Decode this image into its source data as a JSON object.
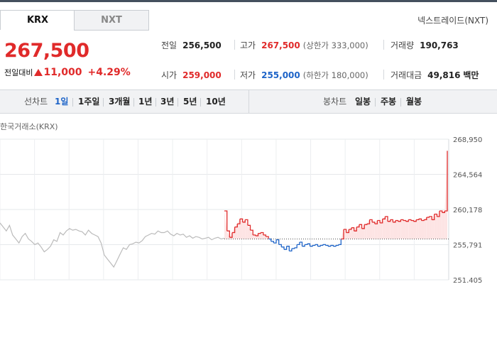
{
  "tabs": [
    {
      "label": "KRX",
      "active": true
    },
    {
      "label": "NXT",
      "active": false
    }
  ],
  "nxt_link": "넥스트레이드(NXT)",
  "price": {
    "current": "267,500",
    "change_label": "전일대비",
    "change": "11,000",
    "percent": "+4.29%"
  },
  "stats": {
    "prev_close": {
      "label": "전일",
      "value": "256,500"
    },
    "high": {
      "label": "고가",
      "value": "267,500",
      "limit_label": "상한가",
      "limit_value": "333,000"
    },
    "volume": {
      "label": "거래량",
      "value": "190,763"
    },
    "open": {
      "label": "시가",
      "value": "259,000"
    },
    "low": {
      "label": "저가",
      "value": "255,000",
      "limit_label": "하한가",
      "limit_value": "180,000"
    },
    "amount": {
      "label": "거래대금",
      "value": "49,816",
      "unit": "백만"
    }
  },
  "toolbar": {
    "line_label": "선차트",
    "line_periods": [
      {
        "label": "1일",
        "active": true
      },
      {
        "label": "1주일"
      },
      {
        "label": "3개월"
      },
      {
        "label": "1년"
      },
      {
        "label": "3년"
      },
      {
        "label": "5년"
      },
      {
        "label": "10년"
      }
    ],
    "candle_label": "봉차트",
    "candle_periods": [
      {
        "label": "일봉"
      },
      {
        "label": "주봉"
      },
      {
        "label": "월봉"
      }
    ]
  },
  "chart_title": "한국거래소(KRX)",
  "colors": {
    "up": "#e02a2a",
    "down": "#1e64c8",
    "preopen": "#bbbbbb",
    "fill_up": "#fde4e4"
  },
  "chart_data": {
    "type": "line",
    "y_ticks": [
      "268,950",
      "264,564",
      "260,178",
      "255,791",
      "251,405"
    ],
    "ylim": [
      251405,
      268950
    ],
    "baseline": 256500,
    "grid": true,
    "pre_market": [
      258500,
      258000,
      257500,
      258200,
      257000,
      256500,
      256000,
      256800,
      257200,
      256500,
      256200,
      255800,
      256000,
      255500,
      254900,
      255200,
      255600,
      256400,
      256200,
      257300,
      257000,
      257500,
      257800,
      257600,
      257700,
      257500,
      257400,
      257000,
      257600,
      257200,
      257000,
      256800
    ],
    "pre_market_dip": [
      256000,
      254500,
      254000,
      253500,
      253000,
      253800,
      254600,
      255400,
      255200,
      255800,
      255900,
      256100,
      256000,
      256300,
      256800,
      257000,
      257200,
      257100,
      257500,
      257300,
      257300,
      257500,
      257100,
      256900,
      257200,
      257000,
      257100,
      256700,
      256900,
      256600,
      256800,
      256700,
      256500,
      256600,
      256700,
      256400,
      256600,
      256700,
      256500,
      256600
    ],
    "regular": [
      260000,
      257500,
      256700,
      257300,
      258000,
      258400,
      259000,
      258600,
      258900,
      258200,
      257600,
      257000,
      256900,
      257200,
      257300,
      257000,
      256800,
      256500,
      256200,
      256000,
      256400,
      255800,
      255500,
      255200,
      255600,
      255000,
      255300,
      255400,
      255800,
      256100,
      255600,
      255800,
      255900,
      255600,
      255700,
      255800,
      255600,
      255700,
      255800,
      255700,
      255600,
      255700,
      255600,
      255700,
      255800,
      256500,
      257700,
      257300,
      257700,
      257900,
      257500,
      258000,
      258300,
      257800,
      258300,
      258400,
      258900,
      258600,
      258400,
      258800,
      258500,
      259000,
      259300,
      258700,
      258900,
      258600,
      258800,
      258700,
      258900,
      258800,
      258700,
      258900,
      258800,
      258700,
      258900,
      259000,
      258800,
      258900,
      259200,
      259300,
      258900,
      259600,
      259300,
      260000,
      259800,
      260000,
      267500
    ]
  }
}
